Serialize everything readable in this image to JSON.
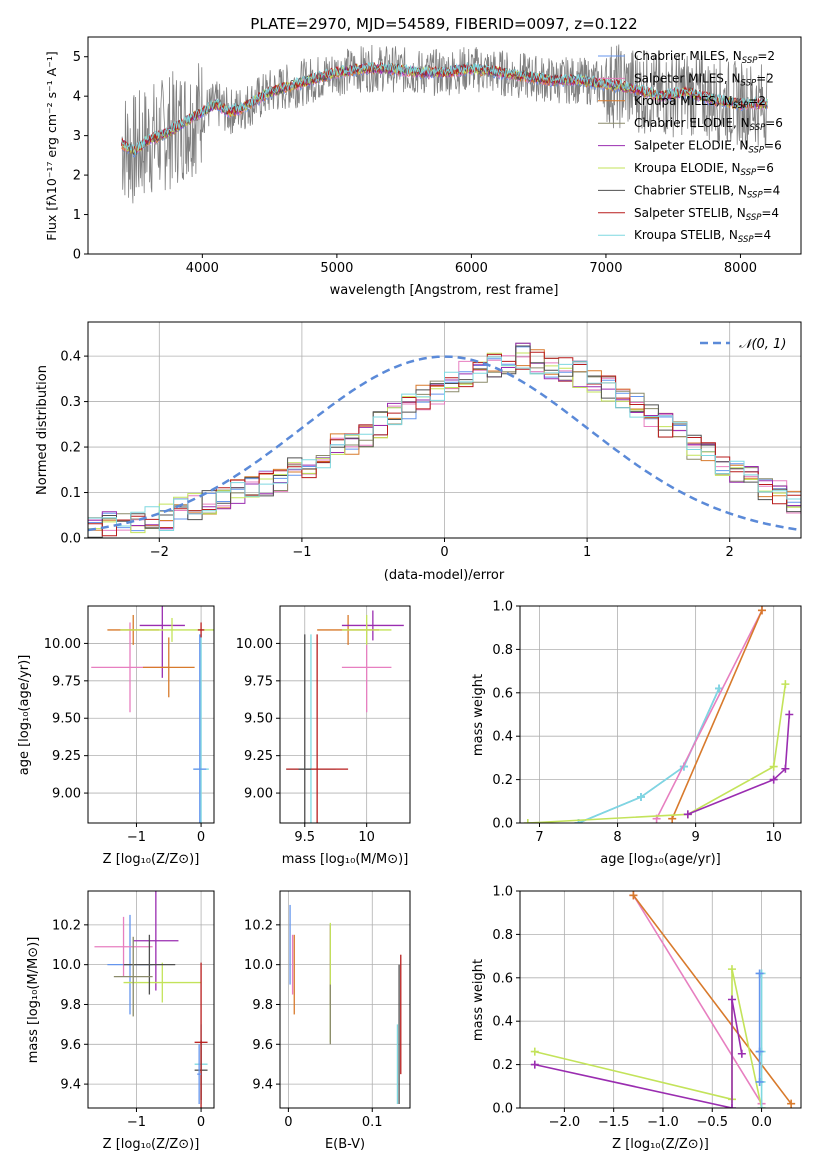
{
  "chart_data": [
    {
      "id": "spectrum",
      "type": "line",
      "title": "PLATE=2970, MJD=54589, FIBERID=0097, z=0.122",
      "xlabel": "wavelength [Angstrom, rest frame]",
      "ylabel": "Flux [fλ10⁻¹⁷ erg cm⁻² s⁻¹ A⁻¹]",
      "xlim": [
        3150,
        8450
      ],
      "ylim": [
        0,
        5.5
      ],
      "xticks": [
        4000,
        5000,
        6000,
        7000,
        8000
      ],
      "yticks": [
        0,
        1,
        2,
        3,
        4,
        5
      ],
      "legend_position": "upper-right",
      "series": [
        {
          "name": "Chabrier MILES, N",
          "sub": "SSP",
          "suffix": "=2",
          "color": "#6495ed"
        },
        {
          "name": "Salpeter MILES, N",
          "sub": "SSP",
          "suffix": "=2",
          "color": "#e77fc0"
        },
        {
          "name": "Kroupa MILES, N",
          "sub": "SSP",
          "suffix": "=2",
          "color": "#d87a2c"
        },
        {
          "name": "Chabrier ELODIE, N",
          "sub": "SSP",
          "suffix": "=6",
          "color": "#8b8b6b"
        },
        {
          "name": "Salpeter ELODIE, N",
          "sub": "SSP",
          "suffix": "=6",
          "color": "#9a2db0"
        },
        {
          "name": "Kroupa ELODIE, N",
          "sub": "SSP",
          "suffix": "=6",
          "color": "#c3e35a"
        },
        {
          "name": "Chabrier STELIB, N",
          "sub": "SSP",
          "suffix": "=4",
          "color": "#505050"
        },
        {
          "name": "Salpeter STELIB, N",
          "sub": "SSP",
          "suffix": "=4",
          "color": "#b81c1c"
        },
        {
          "name": "Kroupa STELIB, N",
          "sub": "SSP",
          "suffix": "=4",
          "color": "#7fd8e0"
        }
      ],
      "data_color": "#808080",
      "model_profile": [
        [
          3400,
          2.8
        ],
        [
          3500,
          2.6
        ],
        [
          3600,
          2.9
        ],
        [
          3700,
          3.0
        ],
        [
          3800,
          3.2
        ],
        [
          3900,
          3.4
        ],
        [
          4000,
          3.6
        ],
        [
          4100,
          3.8
        ],
        [
          4200,
          3.6
        ],
        [
          4300,
          3.7
        ],
        [
          4400,
          3.9
        ],
        [
          4500,
          4.1
        ],
        [
          4600,
          4.2
        ],
        [
          4700,
          4.3
        ],
        [
          4800,
          4.4
        ],
        [
          4900,
          4.5
        ],
        [
          5000,
          4.6
        ],
        [
          5200,
          4.7
        ],
        [
          5400,
          4.7
        ],
        [
          5600,
          4.6
        ],
        [
          5800,
          4.6
        ],
        [
          6000,
          4.7
        ],
        [
          6200,
          4.6
        ],
        [
          6400,
          4.5
        ],
        [
          6600,
          4.4
        ],
        [
          6800,
          4.4
        ],
        [
          7000,
          4.3
        ],
        [
          7200,
          4.2
        ],
        [
          7400,
          4.0
        ],
        [
          7600,
          4.1
        ],
        [
          7800,
          3.9
        ],
        [
          8000,
          3.8
        ],
        [
          8200,
          3.8
        ]
      ]
    },
    {
      "id": "residuals",
      "type": "histogram",
      "xlabel": "(data-model)/error",
      "ylabel": "Normed distribution",
      "xlim": [
        -2.5,
        2.5
      ],
      "ylim": [
        0,
        0.475
      ],
      "xticks": [
        -2,
        -1,
        0,
        1,
        2
      ],
      "yticks": [
        0.0,
        0.1,
        0.2,
        0.3,
        0.4
      ],
      "legend": "𝒩(0, 1)",
      "legend_position": "upper-right",
      "bin_width": 0.1,
      "bins_start": -2.5,
      "values": [
        0.025,
        0.03,
        0.035,
        0.04,
        0.04,
        0.045,
        0.06,
        0.07,
        0.08,
        0.09,
        0.1,
        0.11,
        0.12,
        0.13,
        0.15,
        0.16,
        0.18,
        0.2,
        0.21,
        0.23,
        0.25,
        0.27,
        0.29,
        0.31,
        0.32,
        0.34,
        0.36,
        0.37,
        0.38,
        0.39,
        0.4,
        0.39,
        0.38,
        0.37,
        0.36,
        0.35,
        0.33,
        0.31,
        0.29,
        0.27,
        0.25,
        0.23,
        0.2,
        0.18,
        0.16,
        0.14,
        0.13,
        0.11,
        0.1,
        0.08
      ]
    },
    {
      "id": "age-vs-Z",
      "type": "scatter",
      "xlabel": "Z [log₁₀(Z/Z⊙)]",
      "ylabel": "age  [log₁₀(age/yr)]",
      "xlim": [
        -1.75,
        0.2
      ],
      "ylim": [
        8.8,
        10.25
      ],
      "xticks": [
        -1,
        0
      ],
      "yticks": [
        9.0,
        9.25,
        9.5,
        9.75,
        10.0
      ],
      "points": [
        {
          "x": -1.1,
          "y": 9.84,
          "xerr": 0.6,
          "yerr": 0.3,
          "color": "#e77fc0"
        },
        {
          "x": -1.05,
          "y": 10.09,
          "xerr": 0.4,
          "yerr": 0.1,
          "color": "#d87a2c"
        },
        {
          "x": -0.6,
          "y": 10.12,
          "xerr": 0.35,
          "yerr": 0.35,
          "color": "#9a2db0"
        },
        {
          "x": -0.45,
          "y": 10.09,
          "xerr": 0.8,
          "yerr": 0.08,
          "color": "#c3e35a"
        },
        {
          "x": -0.5,
          "y": 9.84,
          "xerr": 0.4,
          "yerr": 0.2,
          "color": "#d87a2c"
        },
        {
          "x": 0.0,
          "y": 9.16,
          "xerr": 0.12,
          "yerr": 0.9,
          "color": "#7fd8e0"
        },
        {
          "x": -0.02,
          "y": 9.16,
          "xerr": 0.1,
          "yerr": 0.9,
          "color": "#6495ed"
        },
        {
          "x": 0.0,
          "y": 10.09,
          "xerr": 0.05,
          "yerr": 0.05,
          "color": "#b81c1c"
        }
      ]
    },
    {
      "id": "age-vs-mass",
      "type": "scatter",
      "xlabel": "mass [log₁₀(M/M⊙)]",
      "xlim": [
        9.3,
        10.35
      ],
      "ylim": [
        8.8,
        10.25
      ],
      "xticks": [
        9.5,
        10.0
      ],
      "yticks": [
        9.0,
        9.25,
        9.5,
        9.75,
        10.0
      ],
      "points": [
        {
          "x": 9.85,
          "y": 10.09,
          "xerr": 0.25,
          "yerr": 0.1,
          "color": "#d87a2c"
        },
        {
          "x": 10.05,
          "y": 10.12,
          "xerr": 0.25,
          "yerr": 0.1,
          "color": "#9a2db0"
        },
        {
          "x": 10.0,
          "y": 9.84,
          "xerr": 0.2,
          "yerr": 0.3,
          "color": "#e77fc0"
        },
        {
          "x": 9.55,
          "y": 9.16,
          "xerr": 0.2,
          "yerr": 0.9,
          "color": "#7fd8e0"
        },
        {
          "x": 9.6,
          "y": 9.16,
          "xerr": 0.25,
          "yerr": 0.9,
          "color": "#b81c1c"
        },
        {
          "x": 9.5,
          "y": 9.16,
          "xerr": 0.05,
          "yerr": 0.9,
          "color": "#505050"
        },
        {
          "x": 10.0,
          "y": 10.09,
          "xerr": 0.2,
          "yerr": 0.1,
          "color": "#c3e35a"
        }
      ]
    },
    {
      "id": "massweight-vs-age",
      "type": "line",
      "xlabel": "age  [log₁₀(age/yr)]",
      "ylabel": "mass weight",
      "xlim": [
        6.75,
        10.35
      ],
      "ylim": [
        0,
        1.0
      ],
      "xticks": [
        7,
        8,
        9,
        10
      ],
      "yticks": [
        0.0,
        0.2,
        0.4,
        0.6,
        0.8,
        1.0
      ],
      "series": [
        {
          "x": [
            7.5,
            8.3,
            8.85,
            9.3
          ],
          "y": [
            0.0,
            0.12,
            0.26,
            0.62
          ],
          "color": "#6495ed"
        },
        {
          "x": [
            7.5,
            8.3,
            8.85,
            9.3
          ],
          "y": [
            0.0,
            0.12,
            0.26,
            0.62
          ],
          "color": "#7fd8e0"
        },
        {
          "x": [
            8.5,
            9.85
          ],
          "y": [
            0.02,
            0.98
          ],
          "color": "#e77fc0"
        },
        {
          "x": [
            8.7,
            9.85
          ],
          "y": [
            0.02,
            0.98
          ],
          "color": "#d87a2c"
        },
        {
          "x": [
            6.85,
            8.9,
            10.0,
            10.15
          ],
          "y": [
            0.0,
            0.04,
            0.26,
            0.64
          ],
          "color": "#c3e35a"
        },
        {
          "x": [
            8.9,
            10.0,
            10.15,
            10.2
          ],
          "y": [
            0.04,
            0.2,
            0.25,
            0.5
          ],
          "color": "#9a2db0"
        }
      ]
    },
    {
      "id": "mass-vs-Z",
      "type": "scatter",
      "xlabel": "Z [log₁₀(Z/Z⊙)]",
      "ylabel": "mass [log₁₀(M/M⊙)]",
      "xlim": [
        -1.75,
        0.2
      ],
      "ylim": [
        9.28,
        10.37
      ],
      "xticks": [
        -1,
        0
      ],
      "yticks": [
        9.4,
        9.6,
        9.8,
        10.0,
        10.2
      ],
      "points": [
        {
          "x": -1.1,
          "y": 10.0,
          "xerr": 0.35,
          "yerr": 0.25,
          "color": "#6495ed"
        },
        {
          "x": -1.2,
          "y": 10.09,
          "xerr": 0.45,
          "yerr": 0.15,
          "color": "#e77fc0"
        },
        {
          "x": -0.7,
          "y": 10.12,
          "xerr": 0.35,
          "yerr": 0.25,
          "color": "#9a2db0"
        },
        {
          "x": -0.6,
          "y": 9.91,
          "xerr": 0.6,
          "yerr": 0.1,
          "color": "#c3e35a"
        },
        {
          "x": -0.8,
          "y": 10.0,
          "xerr": 0.4,
          "yerr": 0.15,
          "color": "#505050"
        },
        {
          "x": -1.05,
          "y": 9.94,
          "xerr": 0.3,
          "yerr": 0.2,
          "color": "#8b8b6b"
        },
        {
          "x": 0.0,
          "y": 9.5,
          "xerr": 0.1,
          "yerr": 0.2,
          "color": "#7fd8e0"
        },
        {
          "x": 0.0,
          "y": 9.47,
          "xerr": 0.1,
          "yerr": 0.15,
          "color": "#505050"
        },
        {
          "x": 0.0,
          "y": 9.61,
          "xerr": 0.1,
          "yerr": 0.4,
          "color": "#b81c1c"
        },
        {
          "x": -0.03,
          "y": 9.45,
          "xerr": 0.03,
          "yerr": 0.15,
          "color": "#6495ed"
        }
      ]
    },
    {
      "id": "mass-vs-EBV",
      "type": "scatter",
      "xlabel": "E(B-V)",
      "xlim": [
        -0.01,
        0.145
      ],
      "ylim": [
        9.28,
        10.37
      ],
      "xticks": [
        0.0,
        0.1
      ],
      "yticks": [
        9.4,
        9.6,
        9.8,
        10.0,
        10.2
      ],
      "points": [
        {
          "x": 0.002,
          "y": 10.1,
          "xerr": 0,
          "yerr": 0.2,
          "color": "#6495ed"
        },
        {
          "x": 0.005,
          "y": 10.0,
          "xerr": 0,
          "yerr": 0.15,
          "color": "#e77fc0"
        },
        {
          "x": 0.007,
          "y": 9.95,
          "xerr": 0,
          "yerr": 0.2,
          "color": "#d87a2c"
        },
        {
          "x": 0.05,
          "y": 10.0,
          "xerr": 0,
          "yerr": 0.2,
          "color": "#9a2db0"
        },
        {
          "x": 0.05,
          "y": 9.91,
          "xerr": 0,
          "yerr": 0.3,
          "color": "#c3e35a"
        },
        {
          "x": 0.05,
          "y": 9.75,
          "xerr": 0,
          "yerr": 0.15,
          "color": "#8b8b6b"
        },
        {
          "x": 0.132,
          "y": 9.65,
          "xerr": 0,
          "yerr": 0.35,
          "color": "#505050"
        },
        {
          "x": 0.134,
          "y": 9.75,
          "xerr": 0,
          "yerr": 0.3,
          "color": "#b81c1c"
        },
        {
          "x": 0.13,
          "y": 9.5,
          "xerr": 0,
          "yerr": 0.2,
          "color": "#7fd8e0"
        }
      ]
    },
    {
      "id": "massweight-vs-Z",
      "type": "line",
      "xlabel": "Z [log₁₀(Z/Z⊙)]",
      "ylabel": "mass weight",
      "xlim": [
        -2.45,
        0.4
      ],
      "ylim": [
        0,
        1.0
      ],
      "xticks": [
        -2.0,
        -1.5,
        -1.0,
        -0.5,
        0.0
      ],
      "yticks": [
        0.0,
        0.2,
        0.4,
        0.6,
        0.8,
        1.0
      ],
      "series": [
        {
          "x": [
            -1.3,
            0.0
          ],
          "y": [
            0.98,
            0.02
          ],
          "color": "#e77fc0"
        },
        {
          "x": [
            -1.3,
            0.3
          ],
          "y": [
            0.98,
            0.02
          ],
          "color": "#d87a2c"
        },
        {
          "x": [
            -2.3,
            -0.3,
            -0.3,
            0.0
          ],
          "y": [
            0.26,
            0.04,
            0.64,
            0.0
          ],
          "color": "#c3e35a"
        },
        {
          "x": [
            -2.3,
            -0.3,
            -0.3,
            -0.2
          ],
          "y": [
            0.2,
            0.0,
            0.5,
            0.25
          ],
          "color": "#9a2db0"
        },
        {
          "x": [
            0.0,
            0.0,
            0.0,
            0.0
          ],
          "y": [
            0.62,
            0.26,
            0.12,
            0.0
          ],
          "color": "#7fd8e0"
        },
        {
          "x": [
            -0.02,
            -0.02,
            -0.02
          ],
          "y": [
            0.62,
            0.26,
            0.12
          ],
          "color": "#6495ed"
        }
      ]
    }
  ]
}
